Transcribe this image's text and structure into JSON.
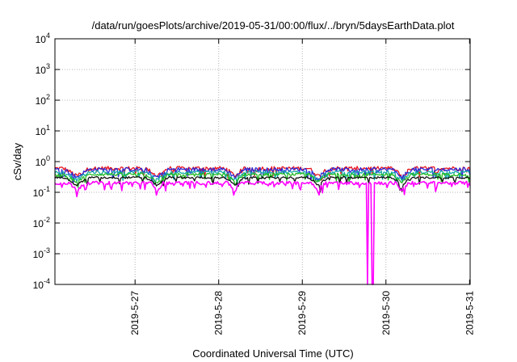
{
  "chart_data": {
    "type": "line",
    "title": "/data/run/goesPlots/archive/2019-05-31/00:00/flux/../bryn/5daysEarthData.plot",
    "xlabel": "Coordinated Universal Time (UTC)",
    "ylabel": "cSv/day",
    "y_scale": "log",
    "ylim": [
      0.0001,
      10000
    ],
    "y_ticks": [
      {
        "value": 0.0001,
        "base": "10",
        "exp": "-4"
      },
      {
        "value": 0.001,
        "base": "10",
        "exp": "-3"
      },
      {
        "value": 0.01,
        "base": "10",
        "exp": "-2"
      },
      {
        "value": 0.1,
        "base": "10",
        "exp": "-1"
      },
      {
        "value": 1,
        "base": "10",
        "exp": "0"
      },
      {
        "value": 10,
        "base": "10",
        "exp": "1"
      },
      {
        "value": 100,
        "base": "10",
        "exp": "2"
      },
      {
        "value": 1000,
        "base": "10",
        "exp": "3"
      },
      {
        "value": 10000,
        "base": "10",
        "exp": "4"
      }
    ],
    "xlim": [
      "2019-05-26 01:00",
      "2019-05-31 00:10"
    ],
    "x_ticks": [
      "2019-5-27",
      "2019-5-28",
      "2019-5-29",
      "2019-5-30",
      "2019-5-31"
    ],
    "grid": true,
    "series": [
      {
        "color": "#e8141e",
        "base": 0.6,
        "amplitude": 0.3,
        "dips": [
          [
            0.26,
            0.16
          ],
          [
            1.22,
            0.14
          ],
          [
            2.15,
            0.12
          ],
          [
            3.15,
            0.12
          ],
          [
            4.15,
            0.12
          ]
        ]
      },
      {
        "color": "#2a2ad8",
        "base": 0.55,
        "amplitude": 0.3,
        "dips": [
          [
            0.26,
            0.16
          ],
          [
            1.22,
            0.14
          ],
          [
            2.15,
            0.12
          ],
          [
            3.15,
            0.12
          ],
          [
            4.15,
            0.12
          ]
        ]
      },
      {
        "color": "#16a9a9",
        "base": 0.45,
        "amplitude": 0.22,
        "dips": [
          [
            0.26,
            0.16
          ],
          [
            1.22,
            0.14
          ],
          [
            2.15,
            0.12
          ],
          [
            3.15,
            0.12
          ],
          [
            4.15,
            0.12
          ]
        ]
      },
      {
        "color": "#22bb22",
        "base": 0.38,
        "amplitude": 0.2,
        "dips": [
          [
            0.26,
            0.16
          ],
          [
            1.22,
            0.14
          ],
          [
            2.15,
            0.12
          ],
          [
            3.15,
            0.12
          ],
          [
            4.15,
            0.12
          ]
        ]
      },
      {
        "color": "#111111",
        "base": 0.3,
        "amplitude": 0.15,
        "dips": [
          [
            0.26,
            0.16
          ],
          [
            1.22,
            0.14
          ],
          [
            2.15,
            0.12
          ],
          [
            3.15,
            0.12
          ],
          [
            4.15,
            0.12
          ]
        ]
      },
      {
        "color": "#ff00ff",
        "base": 0.2,
        "amplitude": 0.25,
        "dips": [
          [
            0.26,
            0.1
          ],
          [
            1.22,
            0.08
          ],
          [
            2.15,
            0.08
          ],
          [
            3.15,
            0.08
          ],
          [
            4.15,
            0.08
          ]
        ],
        "dropouts": [
          [
            3.73,
            3.75
          ],
          [
            3.79,
            3.81
          ]
        ],
        "dropout_value": 0.0001
      }
    ]
  }
}
